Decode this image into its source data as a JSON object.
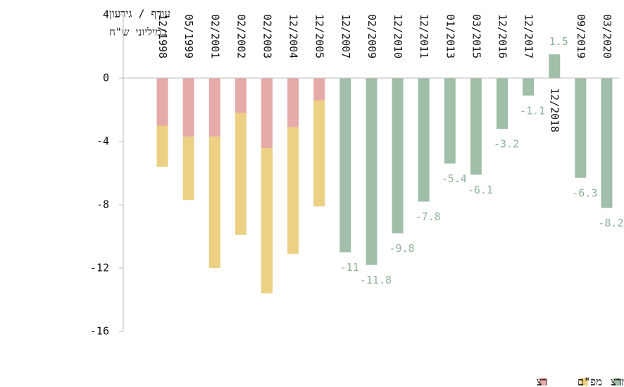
{
  "chart_data": {
    "type": "bar",
    "stacked": true,
    "y_label": [
      "עודף / גירעון",
      "במיליוני ש\"ח"
    ],
    "categories": [
      "12/1998",
      "05/1999",
      "02/2001",
      "02/2002",
      "02/2003",
      "12/2004",
      "12/2005",
      "12/2007",
      "02/2009",
      "12/2010",
      "12/2011",
      "01/2013",
      "03/2015",
      "12/2016",
      "12/2017",
      "12/2018",
      "09/2019",
      "03/2020"
    ],
    "series": [
      {
        "name": "רצ",
        "color": "#e6aaa8",
        "values": [
          -3.0,
          -3.7,
          -3.7,
          -2.2,
          -4.4,
          -3.1,
          -1.4,
          null,
          null,
          null,
          null,
          null,
          null,
          null,
          null,
          null,
          null,
          null
        ]
      },
      {
        "name": "מפ\"ם",
        "color": "#ecd083",
        "values": [
          -2.6,
          -4.0,
          -8.3,
          -7.7,
          -9.2,
          -8.0,
          -6.7,
          null,
          null,
          null,
          null,
          null,
          null,
          null,
          null,
          null,
          null,
          null
        ]
      },
      {
        "name": "מרצ",
        "color": "#a0bfa8",
        "label_color": "#8fb398",
        "show_labels": true,
        "values": [
          null,
          null,
          null,
          null,
          null,
          null,
          null,
          -11,
          -11.8,
          -9.8,
          -7.8,
          -5.4,
          -6.1,
          -3.2,
          -1.1,
          1.5,
          -6.3,
          -8.2
        ]
      }
    ],
    "ylim": [
      -16,
      4
    ],
    "yticks": [
      4,
      0,
      -4,
      -8,
      -12,
      -16
    ],
    "grid": false,
    "legend": "bottom-right"
  }
}
